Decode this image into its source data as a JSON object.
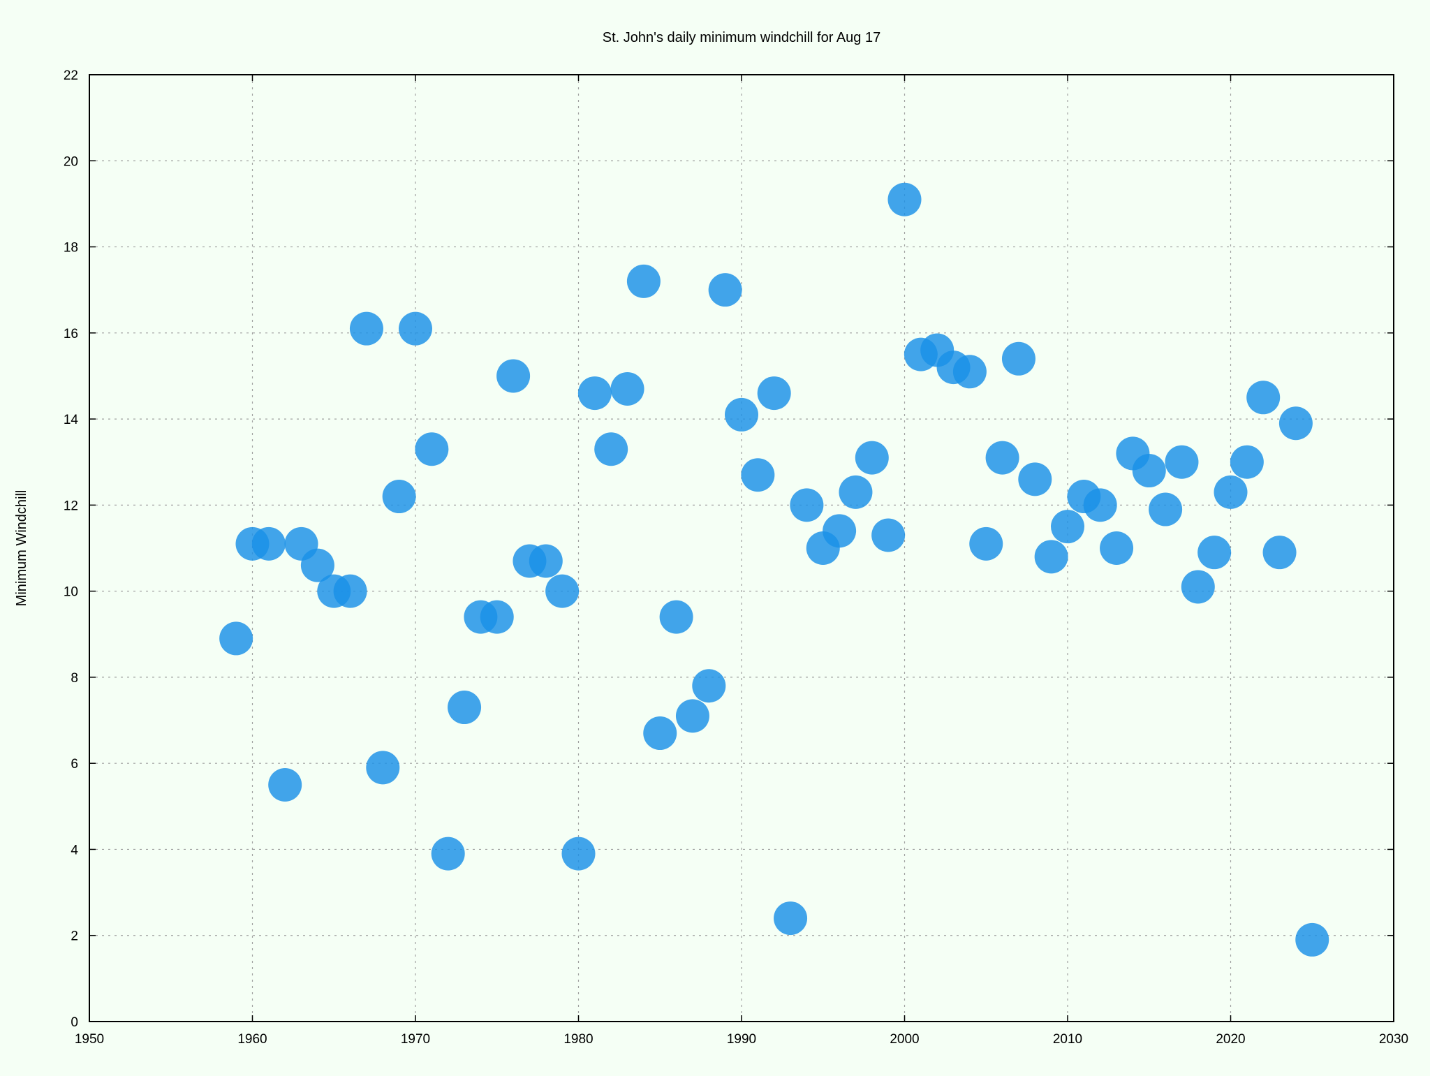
{
  "chart_data": {
    "type": "scatter",
    "title": "St. John's daily minimum windchill for Aug 17",
    "xlabel": "",
    "ylabel": "Minimum Windchill",
    "xlim": [
      1950,
      2030
    ],
    "ylim": [
      0,
      22
    ],
    "xticks": [
      1950,
      1960,
      1970,
      1980,
      1990,
      2000,
      2010,
      2020,
      2030
    ],
    "yticks": [
      0,
      2,
      4,
      6,
      8,
      10,
      12,
      14,
      16,
      18,
      20,
      22
    ],
    "grid": true,
    "marker_color": "#1a90e8",
    "series": [
      {
        "x": [
          1959,
          1960,
          1961,
          1962,
          1963,
          1964,
          1965,
          1966,
          1967,
          1968,
          1969,
          1970,
          1971,
          1972,
          1973,
          1974,
          1975,
          1976,
          1977,
          1978,
          1979,
          1980,
          1981,
          1982,
          1983,
          1984,
          1985,
          1986,
          1987,
          1988,
          1989,
          1990,
          1991,
          1992,
          1993,
          1994,
          1995,
          1996,
          1997,
          1998,
          1999,
          2000,
          2001,
          2002,
          2003,
          2004,
          2005,
          2006,
          2007,
          2008,
          2009,
          2010,
          2011,
          2012,
          2013,
          2014,
          2015,
          2016,
          2017,
          2018,
          2019,
          2020,
          2021,
          2022,
          2023,
          2024,
          2025
        ],
        "y": [
          8.9,
          11.1,
          11.1,
          5.5,
          11.1,
          10.6,
          10.0,
          10.0,
          16.1,
          5.9,
          12.2,
          16.1,
          13.3,
          3.9,
          7.3,
          9.4,
          9.4,
          15.0,
          10.7,
          10.7,
          10.0,
          3.9,
          14.6,
          13.3,
          14.7,
          17.2,
          6.7,
          9.4,
          7.1,
          7.8,
          17.0,
          14.1,
          12.7,
          14.6,
          2.4,
          12.0,
          11.0,
          11.4,
          12.3,
          13.1,
          11.3,
          19.1,
          15.5,
          15.6,
          15.2,
          15.1,
          11.1,
          13.1,
          15.4,
          12.6,
          10.8,
          11.5,
          12.2,
          12.0,
          11.0,
          13.2,
          12.8,
          11.9,
          13.0,
          10.1,
          10.9,
          12.3,
          13.0,
          14.5,
          10.9,
          13.9,
          1.9
        ]
      }
    ]
  }
}
